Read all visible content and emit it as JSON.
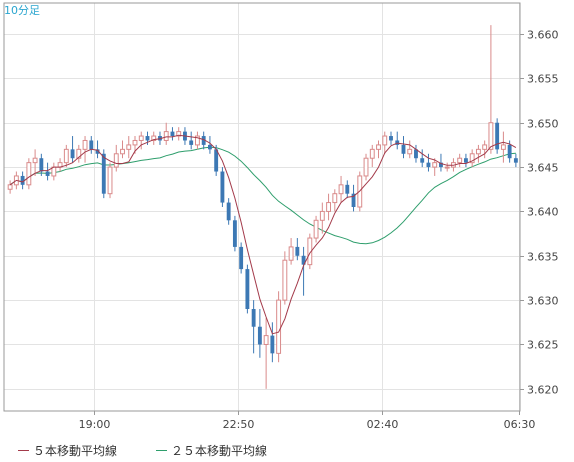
{
  "chart_data": {
    "type": "candlestick",
    "interval_label": "10分足",
    "y_tick_labels": [
      "3.620",
      "3.625",
      "3.630",
      "3.635",
      "3.640",
      "3.645",
      "3.650",
      "3.655",
      "3.660"
    ],
    "x_tick_labels": [
      "19:00",
      "22:50",
      "02:40",
      "06:30"
    ],
    "ylim": [
      3.6175,
      3.6635
    ],
    "grid": true,
    "legend_position": "bottom-left",
    "colors": {
      "up": "#d98a8a",
      "down": "#3c78b4",
      "ma5": "#a33a4a",
      "ma25": "#2e9e6c",
      "grid": "#e3e3e3",
      "frame": "#999999",
      "axis_text": "#444444",
      "title": "#2aa5cf"
    },
    "series": [
      {
        "name": "５本移動平均線",
        "color": "#a33a4a"
      },
      {
        "name": "２５本移動平均線",
        "color": "#2e9e6c"
      }
    ],
    "candles": [
      [
        3.6425,
        3.6435,
        3.642,
        3.643
      ],
      [
        3.643,
        3.6445,
        3.6425,
        3.644
      ],
      [
        3.644,
        3.6445,
        3.6425,
        3.643
      ],
      [
        3.643,
        3.646,
        3.6425,
        3.6455
      ],
      [
        3.6455,
        3.647,
        3.644,
        3.646
      ],
      [
        3.646,
        3.6465,
        3.644,
        3.6445
      ],
      [
        3.6445,
        3.6455,
        3.6435,
        3.644
      ],
      [
        3.644,
        3.6455,
        3.6435,
        3.645
      ],
      [
        3.645,
        3.646,
        3.6445,
        3.6455
      ],
      [
        3.6455,
        3.6475,
        3.645,
        3.647
      ],
      [
        3.647,
        3.6485,
        3.6455,
        3.646
      ],
      [
        3.646,
        3.6475,
        3.6455,
        3.647
      ],
      [
        3.647,
        3.6485,
        3.6455,
        3.648
      ],
      [
        3.648,
        3.6485,
        3.6465,
        3.647
      ],
      [
        3.647,
        3.648,
        3.646,
        3.6465
      ],
      [
        3.6465,
        3.647,
        3.6415,
        3.642
      ],
      [
        3.642,
        3.6455,
        3.6415,
        3.645
      ],
      [
        3.645,
        3.6475,
        3.6445,
        3.6465
      ],
      [
        3.6465,
        3.648,
        3.646,
        3.647
      ],
      [
        3.647,
        3.6485,
        3.646,
        3.6475
      ],
      [
        3.6475,
        3.6485,
        3.6465,
        3.648
      ],
      [
        3.648,
        3.649,
        3.647,
        3.6485
      ],
      [
        3.6485,
        3.649,
        3.6475,
        3.648
      ],
      [
        3.648,
        3.649,
        3.6475,
        3.6485
      ],
      [
        3.6485,
        3.649,
        3.6475,
        3.648
      ],
      [
        3.648,
        3.65,
        3.6475,
        3.649
      ],
      [
        3.649,
        3.6495,
        3.648,
        3.6485
      ],
      [
        3.6485,
        3.6495,
        3.648,
        3.649
      ],
      [
        3.649,
        3.6495,
        3.6475,
        3.648
      ],
      [
        3.648,
        3.649,
        3.647,
        3.6475
      ],
      [
        3.6475,
        3.649,
        3.647,
        3.6485
      ],
      [
        3.6485,
        3.649,
        3.647,
        3.6475
      ],
      [
        3.6475,
        3.6485,
        3.6465,
        3.647
      ],
      [
        3.647,
        3.6475,
        3.644,
        3.6445
      ],
      [
        3.6445,
        3.645,
        3.6405,
        3.641
      ],
      [
        3.641,
        3.6415,
        3.6385,
        3.639
      ],
      [
        3.639,
        3.6395,
        3.6355,
        3.636
      ],
      [
        3.636,
        3.6365,
        3.633,
        3.6335
      ],
      [
        3.6335,
        3.634,
        3.6285,
        3.629
      ],
      [
        3.629,
        3.63,
        3.624,
        3.627
      ],
      [
        3.627,
        3.629,
        3.6235,
        3.625
      ],
      [
        3.625,
        3.628,
        3.62,
        3.626
      ],
      [
        3.626,
        3.6275,
        3.623,
        3.624
      ],
      [
        3.624,
        3.631,
        3.623,
        3.63
      ],
      [
        3.63,
        3.6355,
        3.6295,
        3.6345
      ],
      [
        3.6345,
        3.637,
        3.634,
        3.636
      ],
      [
        3.636,
        3.637,
        3.6345,
        3.635
      ],
      [
        3.635,
        3.636,
        3.6305,
        3.634
      ],
      [
        3.634,
        3.6375,
        3.6335,
        3.637
      ],
      [
        3.637,
        3.6395,
        3.6365,
        3.639
      ],
      [
        3.639,
        3.641,
        3.6375,
        3.64
      ],
      [
        3.64,
        3.642,
        3.639,
        3.641
      ],
      [
        3.641,
        3.6425,
        3.64,
        3.642
      ],
      [
        3.642,
        3.644,
        3.641,
        3.643
      ],
      [
        3.643,
        3.6435,
        3.6415,
        3.642
      ],
      [
        3.642,
        3.643,
        3.64,
        3.6405
      ],
      [
        3.6405,
        3.6445,
        3.64,
        3.644
      ],
      [
        3.644,
        3.6465,
        3.6435,
        3.646
      ],
      [
        3.646,
        3.6475,
        3.645,
        3.647
      ],
      [
        3.647,
        3.648,
        3.646,
        3.6475
      ],
      [
        3.6475,
        3.649,
        3.6465,
        3.6485
      ],
      [
        3.6485,
        3.649,
        3.6475,
        3.648
      ],
      [
        3.648,
        3.649,
        3.647,
        3.6475
      ],
      [
        3.6475,
        3.6485,
        3.646,
        3.6465
      ],
      [
        3.6465,
        3.648,
        3.646,
        3.647
      ],
      [
        3.647,
        3.6475,
        3.6455,
        3.646
      ],
      [
        3.646,
        3.647,
        3.645,
        3.6455
      ],
      [
        3.6455,
        3.6465,
        3.6445,
        3.645
      ],
      [
        3.645,
        3.646,
        3.644,
        3.6455
      ],
      [
        3.6455,
        3.6465,
        3.6445,
        3.645
      ],
      [
        3.645,
        3.6455,
        3.6445,
        3.645
      ],
      [
        3.645,
        3.646,
        3.6445,
        3.6455
      ],
      [
        3.6455,
        3.6465,
        3.645,
        3.646
      ],
      [
        3.646,
        3.6465,
        3.645,
        3.6455
      ],
      [
        3.6455,
        3.647,
        3.645,
        3.6465
      ],
      [
        3.6465,
        3.6475,
        3.6455,
        3.647
      ],
      [
        3.647,
        3.648,
        3.646,
        3.6475
      ],
      [
        3.647,
        3.661,
        3.6465,
        3.65
      ],
      [
        3.65,
        3.6505,
        3.6465,
        3.647
      ],
      [
        3.647,
        3.649,
        3.6455,
        3.6475
      ],
      [
        3.6475,
        3.648,
        3.6455,
        3.646
      ],
      [
        3.646,
        3.6465,
        3.645,
        3.6455
      ]
    ]
  }
}
